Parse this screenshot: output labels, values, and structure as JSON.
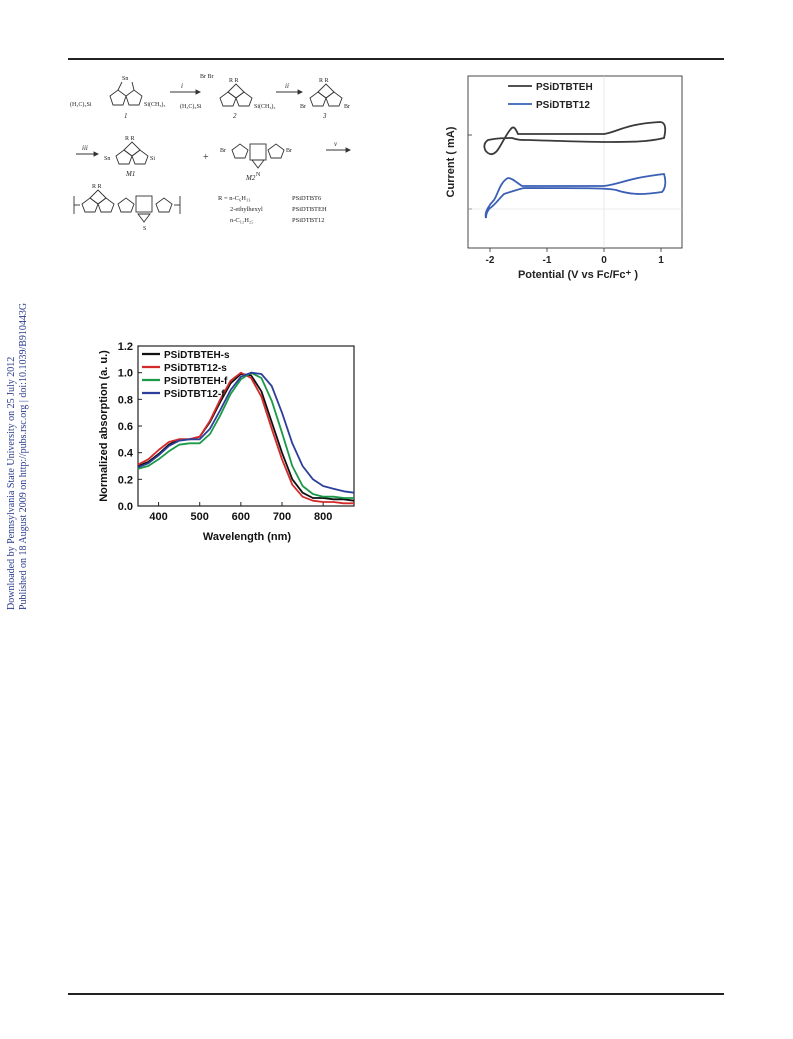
{
  "sidebar": {
    "line1": "Downloaded by Pennsylvania State University on 25 July 2012",
    "line2": "Published on 18 August 2009 on http://pubs.rsc.org | doi:10.1039/B910443G"
  },
  "scheme": {
    "labels": {
      "c1": "1",
      "c2": "2",
      "c3": "3",
      "m1": "M1",
      "m2": "M2",
      "r1": "i",
      "r2": "ii",
      "r3": "iii",
      "r5": "v",
      "plus": "+",
      "tms_left": "(H₃C)₃Si",
      "tms_right": "Si(CH₃)₃",
      "tms_left2": "(H₃C)₃Si",
      "tms_right2": "Si(CH₃)₃",
      "br": "Br",
      "br2": "Br",
      "br3": "Br",
      "br4": "Br",
      "top_sub": "Br Br",
      "rr": "R   R",
      "rr2": "R   R",
      "rr3": "R   R",
      "rr4": "R   R",
      "sn": "Sn",
      "sn2": "Sn",
      "s": "S",
      "n": "N",
      "si": "Si"
    },
    "legend": [
      {
        "r": "R = n-C₆H₁₃",
        "name": "PSiDTBT6"
      },
      {
        "r": "2-ethylhexyl",
        "name": "PSiDTBTEH"
      },
      {
        "r": "n-C₁₂H₂₅",
        "name": "PSiDTBT12"
      }
    ]
  },
  "cv": {
    "legend": [
      "PSiDTBTEH",
      "PSiDTBT12"
    ],
    "xlabel": "Potential (V vs Fc/Fc⁺ )",
    "ylabel": "Current ( mA)",
    "xticks": [
      "-2",
      "-1",
      "0",
      "1"
    ],
    "colors": [
      "#3a3a3a",
      "#3a5fb5"
    ]
  },
  "chart_data": {
    "type": "line",
    "xlabel": "Wavelength (nm)",
    "ylabel": "Normalized absorption (a. u.)",
    "xlim": [
      350,
      875
    ],
    "ylim": [
      0.0,
      1.2
    ],
    "xticks": [
      400,
      500,
      600,
      700,
      800
    ],
    "yticks": [
      0.0,
      0.2,
      0.4,
      0.6,
      0.8,
      1.0,
      1.2
    ],
    "legend_position": "top-left",
    "x": [
      350,
      375,
      400,
      425,
      450,
      475,
      500,
      525,
      550,
      575,
      600,
      625,
      650,
      675,
      700,
      725,
      750,
      775,
      800,
      825,
      850,
      875
    ],
    "series": [
      {
        "name": "PSiDTBTEH-s",
        "color": "#111111",
        "values": [
          0.3,
          0.33,
          0.39,
          0.46,
          0.5,
          0.5,
          0.52,
          0.63,
          0.78,
          0.92,
          0.99,
          0.98,
          0.86,
          0.63,
          0.4,
          0.2,
          0.1,
          0.06,
          0.06,
          0.05,
          0.05,
          0.04
        ]
      },
      {
        "name": "PSiDTBT12-s",
        "color": "#d42a2a",
        "values": [
          0.31,
          0.35,
          0.42,
          0.48,
          0.5,
          0.5,
          0.52,
          0.64,
          0.8,
          0.94,
          1.0,
          0.96,
          0.82,
          0.58,
          0.35,
          0.16,
          0.07,
          0.04,
          0.03,
          0.03,
          0.02,
          0.02
        ]
      },
      {
        "name": "PSiDTBTEH-f",
        "color": "#1a9a48",
        "values": [
          0.28,
          0.3,
          0.35,
          0.41,
          0.46,
          0.47,
          0.47,
          0.54,
          0.68,
          0.84,
          0.95,
          1.0,
          0.96,
          0.79,
          0.55,
          0.3,
          0.15,
          0.09,
          0.07,
          0.07,
          0.06,
          0.06
        ]
      },
      {
        "name": "PSiDTBT12-f",
        "color": "#2d3f9a",
        "values": [
          0.29,
          0.32,
          0.38,
          0.45,
          0.49,
          0.5,
          0.5,
          0.58,
          0.72,
          0.87,
          0.97,
          1.0,
          0.99,
          0.9,
          0.7,
          0.47,
          0.3,
          0.2,
          0.15,
          0.13,
          0.11,
          0.1
        ]
      }
    ]
  }
}
